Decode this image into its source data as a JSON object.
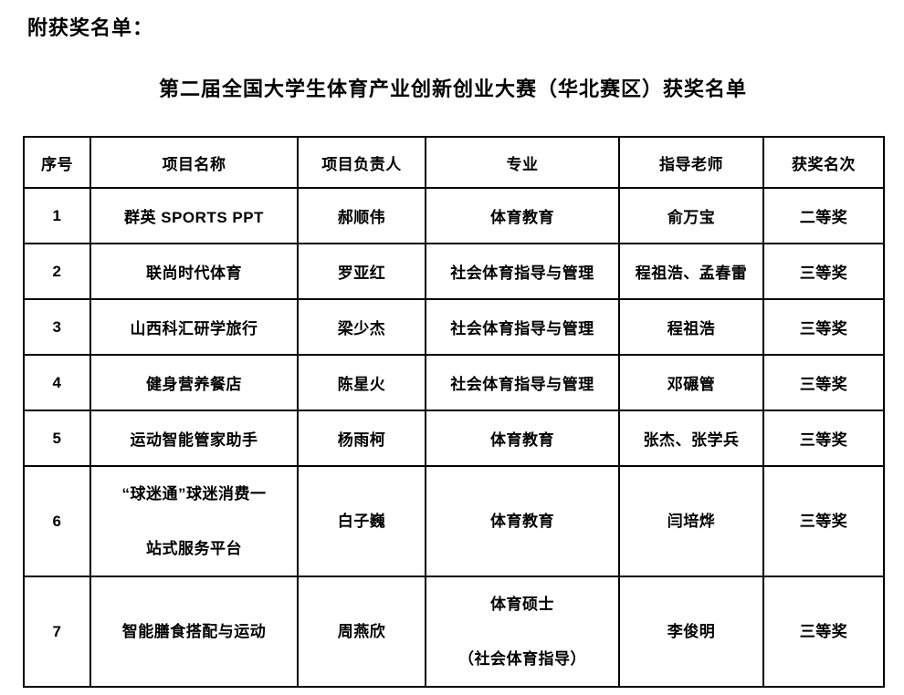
{
  "page": {
    "heading": "附获奖名单：",
    "subtitle": "第二届全国大学生体育产业创新创业大赛（华北赛区）获奖名单"
  },
  "table": {
    "columns": [
      "no",
      "project",
      "leader",
      "major",
      "teacher",
      "award"
    ],
    "headers": [
      "序号",
      "项目名称",
      "项目负责人",
      "专业",
      "指导老师",
      "获奖名次"
    ],
    "rows": [
      {
        "no": "1",
        "project": "群英 SPORTS PPT",
        "leader": "郝顺伟",
        "major": "体育教育",
        "teacher": "俞万宝",
        "award": "二等奖"
      },
      {
        "no": "2",
        "project": "联尚时代体育",
        "leader": "罗亚红",
        "major": "社会体育指导与管理",
        "teacher": "程祖浩、孟春雷",
        "award": "三等奖"
      },
      {
        "no": "3",
        "project": "山西科汇研学旅行",
        "leader": "梁少杰",
        "major": "社会体育指导与管理",
        "teacher": "程祖浩",
        "award": "三等奖"
      },
      {
        "no": "4",
        "project": "健身营养餐店",
        "leader": "陈星火",
        "major": "社会体育指导与管理",
        "teacher": "邓碾管",
        "award": "三等奖"
      },
      {
        "no": "5",
        "project": "运动智能管家助手",
        "leader": "杨雨柯",
        "major": "体育教育",
        "teacher": "张杰、张学兵",
        "award": "三等奖"
      },
      {
        "no": "6",
        "project": "“球迷通”球迷消费一\n站式服务平台",
        "leader": "白子巍",
        "major": "体育教育",
        "teacher": "闫培烨",
        "award": "三等奖"
      },
      {
        "no": "7",
        "project": "智能膳食搭配与运动",
        "leader": "周燕欣",
        "major": "体育硕士\n（社会体育指导）",
        "teacher": "李俊明",
        "award": "三等奖"
      }
    ]
  },
  "colors": {
    "text": "#000000",
    "background": "#ffffff",
    "border": "#000000"
  }
}
